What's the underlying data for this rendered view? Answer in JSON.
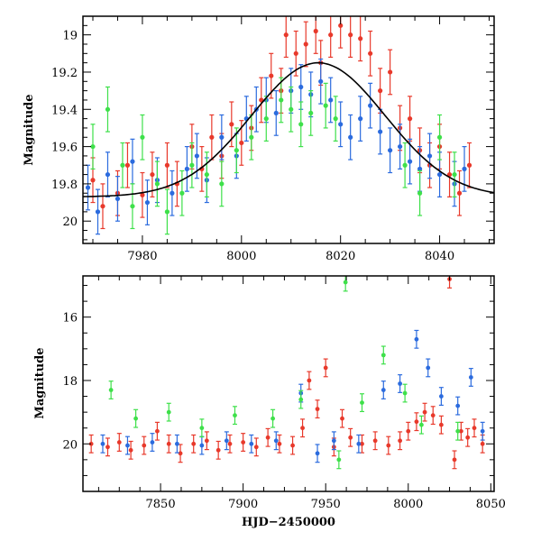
{
  "chart_data": [
    {
      "type": "scatter",
      "title": "",
      "xlabel": "",
      "ylabel": "Magnitude",
      "xlim": [
        7968,
        8051
      ],
      "ylim": [
        20.12,
        18.9
      ],
      "y_inverted": true,
      "xticks": [
        7980,
        8000,
        8020,
        8040
      ],
      "xtick_labels": [
        "7980",
        "8000",
        "8020",
        "8040"
      ],
      "yticks": [
        19,
        19.2,
        19.4,
        19.6,
        19.8,
        20
      ],
      "ytick_labels": [
        "19",
        "19.2",
        "19.4",
        "19.6",
        "19.8",
        "20"
      ],
      "grid": false,
      "legend": "none",
      "series": [
        {
          "color": "#e8392b",
          "error_bars": true,
          "points": [
            [
              7970,
              19.78
            ],
            [
              7972,
              19.92
            ],
            [
              7975,
              19.85
            ],
            [
              7977,
              19.7
            ],
            [
              7980,
              19.86
            ],
            [
              7982,
              19.75
            ],
            [
              7985,
              19.7
            ],
            [
              7987,
              19.8
            ],
            [
              7990,
              19.6
            ],
            [
              7992,
              19.72
            ],
            [
              7994,
              19.55
            ],
            [
              7996,
              19.65
            ],
            [
              7998,
              19.48
            ],
            [
              8000,
              19.58
            ],
            [
              8002,
              19.5
            ],
            [
              8004,
              19.35
            ],
            [
              8006,
              19.22
            ],
            [
              8008,
              19.3
            ],
            [
              8009,
              19.0
            ],
            [
              8011,
              19.1
            ],
            [
              8013,
              19.05
            ],
            [
              8015,
              18.98
            ],
            [
              8016,
              19.15
            ],
            [
              8018,
              19.0
            ],
            [
              8020,
              18.95
            ],
            [
              8022,
              19.0
            ],
            [
              8024,
              19.02
            ],
            [
              8026,
              19.1
            ],
            [
              8028,
              19.3
            ],
            [
              8030,
              19.2
            ],
            [
              8032,
              19.5
            ],
            [
              8034,
              19.45
            ],
            [
              8036,
              19.62
            ],
            [
              8038,
              19.7
            ],
            [
              8040,
              19.6
            ],
            [
              8042,
              19.75
            ],
            [
              8044,
              19.85
            ],
            [
              8046,
              19.7
            ]
          ]
        },
        {
          "color": "#2b6bde",
          "error_bars": true,
          "points": [
            [
              7969,
              19.82
            ],
            [
              7971,
              19.95
            ],
            [
              7973,
              19.75
            ],
            [
              7975,
              19.88
            ],
            [
              7978,
              19.68
            ],
            [
              7981,
              19.9
            ],
            [
              7983,
              19.78
            ],
            [
              7986,
              19.85
            ],
            [
              7989,
              19.72
            ],
            [
              7991,
              19.65
            ],
            [
              7993,
              19.78
            ],
            [
              7996,
              19.55
            ],
            [
              7999,
              19.65
            ],
            [
              8001,
              19.45
            ],
            [
              8003,
              19.4
            ],
            [
              8005,
              19.35
            ],
            [
              8007,
              19.42
            ],
            [
              8010,
              19.3
            ],
            [
              8012,
              19.28
            ],
            [
              8014,
              19.32
            ],
            [
              8016,
              19.25
            ],
            [
              8018,
              19.35
            ],
            [
              8020,
              19.48
            ],
            [
              8022,
              19.55
            ],
            [
              8024,
              19.45
            ],
            [
              8026,
              19.38
            ],
            [
              8028,
              19.52
            ],
            [
              8030,
              19.62
            ],
            [
              8032,
              19.6
            ],
            [
              8034,
              19.68
            ],
            [
              8036,
              19.72
            ],
            [
              8038,
              19.65
            ],
            [
              8040,
              19.75
            ],
            [
              8043,
              19.8
            ],
            [
              8045,
              19.72
            ]
          ]
        },
        {
          "color": "#3ee04a",
          "error_bars": true,
          "points": [
            [
              7970,
              19.6
            ],
            [
              7973,
              19.4
            ],
            [
              7976,
              19.7
            ],
            [
              7978,
              19.92
            ],
            [
              7980,
              19.55
            ],
            [
              7983,
              19.8
            ],
            [
              7985,
              19.95
            ],
            [
              7988,
              19.85
            ],
            [
              7990,
              19.7
            ],
            [
              7993,
              19.75
            ],
            [
              7996,
              19.8
            ],
            [
              7999,
              19.62
            ],
            [
              8002,
              19.55
            ],
            [
              8005,
              19.45
            ],
            [
              8008,
              19.35
            ],
            [
              8010,
              19.4
            ],
            [
              8012,
              19.48
            ],
            [
              8014,
              19.42
            ],
            [
              8017,
              19.38
            ],
            [
              8019,
              19.45
            ],
            [
              8033,
              19.7
            ],
            [
              8036,
              19.85
            ],
            [
              8040,
              19.55
            ],
            [
              8043,
              19.75
            ]
          ]
        }
      ],
      "model_curve": {
        "color": "#000000",
        "peak_x": 8015.5,
        "peak_mag": 19.15,
        "baseline_mag": 19.87,
        "timescale_days": 13.5
      }
    },
    {
      "type": "scatter",
      "title": "",
      "xlabel": "HJD−2450000",
      "ylabel": "Magnitude",
      "xlim": [
        7803,
        8052
      ],
      "ylim": [
        21.5,
        14.7
      ],
      "y_inverted": true,
      "xticks": [
        7850,
        7900,
        7950,
        8000,
        8050
      ],
      "xtick_labels": [
        "7850",
        "7900",
        "7950",
        "8000",
        "8050"
      ],
      "yticks": [
        16,
        18,
        20
      ],
      "ytick_labels": [
        "16",
        "18",
        "20"
      ],
      "grid": false,
      "legend": "none",
      "series": [
        {
          "color": "#e8392b",
          "error_bars": true,
          "points": [
            [
              7808,
              20.0
            ],
            [
              7818,
              20.1
            ],
            [
              7825,
              19.95
            ],
            [
              7832,
              20.2
            ],
            [
              7840,
              20.05
            ],
            [
              7848,
              19.6
            ],
            [
              7855,
              20.0
            ],
            [
              7862,
              20.3
            ],
            [
              7870,
              20.0
            ],
            [
              7878,
              19.9
            ],
            [
              7885,
              20.2
            ],
            [
              7892,
              20.0
            ],
            [
              7900,
              19.95
            ],
            [
              7908,
              20.1
            ],
            [
              7915,
              19.8
            ],
            [
              7922,
              20.0
            ],
            [
              7930,
              20.05
            ],
            [
              7936,
              19.5
            ],
            [
              7940,
              18.0
            ],
            [
              7945,
              18.9
            ],
            [
              7950,
              17.6
            ],
            [
              7955,
              20.1
            ],
            [
              7960,
              19.2
            ],
            [
              7965,
              19.8
            ],
            [
              7972,
              20.0
            ],
            [
              7980,
              19.9
            ],
            [
              7988,
              20.05
            ],
            [
              7995,
              19.9
            ],
            [
              8000,
              19.6
            ],
            [
              8005,
              19.3
            ],
            [
              8010,
              19.0
            ],
            [
              8015,
              19.1
            ],
            [
              8020,
              19.4
            ],
            [
              8025,
              14.8
            ],
            [
              8028,
              20.5
            ],
            [
              8032,
              19.6
            ],
            [
              8036,
              19.8
            ],
            [
              8040,
              19.5
            ],
            [
              8045,
              20.0
            ]
          ]
        },
        {
          "color": "#2b6bde",
          "error_bars": true,
          "points": [
            [
              7815,
              20.0
            ],
            [
              7830,
              20.05
            ],
            [
              7845,
              19.95
            ],
            [
              7860,
              20.0
            ],
            [
              7875,
              20.05
            ],
            [
              7890,
              19.9
            ],
            [
              7905,
              20.0
            ],
            [
              7920,
              19.9
            ],
            [
              7935,
              18.4
            ],
            [
              7945,
              20.3
            ],
            [
              7955,
              19.9
            ],
            [
              7970,
              20.0
            ],
            [
              7985,
              18.3
            ],
            [
              7995,
              18.1
            ],
            [
              8005,
              16.7
            ],
            [
              8012,
              17.6
            ],
            [
              8020,
              18.5
            ],
            [
              8030,
              18.8
            ],
            [
              8038,
              17.9
            ],
            [
              8045,
              19.6
            ]
          ]
        },
        {
          "color": "#3ee04a",
          "error_bars": true,
          "points": [
            [
              7820,
              18.3
            ],
            [
              7835,
              19.2
            ],
            [
              7855,
              19.0
            ],
            [
              7875,
              19.5
            ],
            [
              7895,
              19.1
            ],
            [
              7918,
              19.2
            ],
            [
              7935,
              18.6
            ],
            [
              7958,
              20.5
            ],
            [
              7962,
              14.9
            ],
            [
              7972,
              18.7
            ],
            [
              7985,
              17.2
            ],
            [
              7998,
              18.4
            ],
            [
              8008,
              19.4
            ],
            [
              8030,
              19.6
            ]
          ]
        }
      ]
    }
  ]
}
